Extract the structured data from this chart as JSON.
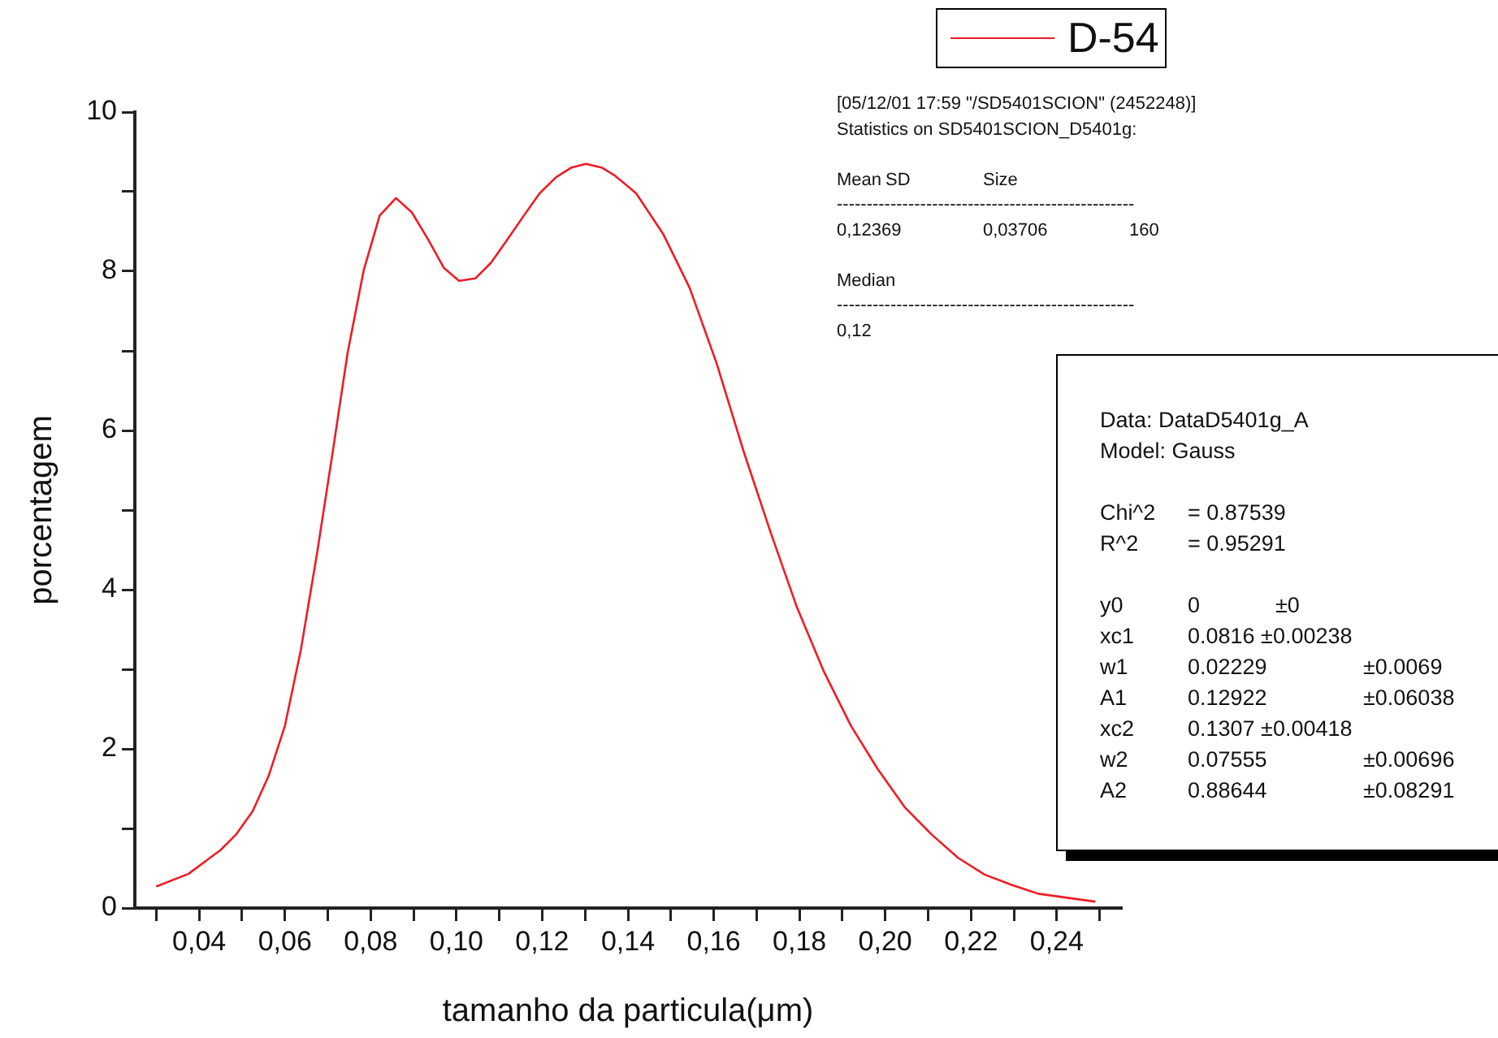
{
  "chart_data": {
    "type": "line",
    "xlabel": "tamanho da particula(μm)",
    "ylabel": "porcentagem",
    "xlim": [
      0.025,
      0.255
    ],
    "xticks": [
      {
        "value": 0.03,
        "label": null
      },
      {
        "value": 0.04,
        "label": "0,04"
      },
      {
        "value": 0.05,
        "label": null
      },
      {
        "value": 0.06,
        "label": "0,06"
      },
      {
        "value": 0.07,
        "label": null
      },
      {
        "value": 0.08,
        "label": "0,08"
      },
      {
        "value": 0.09,
        "label": null
      },
      {
        "value": 0.1,
        "label": "0,10"
      },
      {
        "value": 0.11,
        "label": null
      },
      {
        "value": 0.12,
        "label": "0,12"
      },
      {
        "value": 0.13,
        "label": null
      },
      {
        "value": 0.14,
        "label": "0,14"
      },
      {
        "value": 0.15,
        "label": null
      },
      {
        "value": 0.16,
        "label": "0,16"
      },
      {
        "value": 0.17,
        "label": null
      },
      {
        "value": 0.18,
        "label": "0,18"
      },
      {
        "value": 0.19,
        "label": null
      },
      {
        "value": 0.2,
        "label": "0,20"
      },
      {
        "value": 0.21,
        "label": null
      },
      {
        "value": 0.22,
        "label": "0,22"
      },
      {
        "value": 0.23,
        "label": null
      },
      {
        "value": 0.24,
        "label": "0,24"
      },
      {
        "value": 0.25,
        "label": null
      }
    ],
    "ylim": [
      0,
      10
    ],
    "yticks": [
      0,
      {
        "value": 1,
        "label": null
      },
      2,
      {
        "value": 3,
        "label": null
      },
      4,
      {
        "value": 5,
        "label": null
      },
      6,
      {
        "value": 7,
        "label": null
      },
      8,
      {
        "value": 9,
        "label": null
      },
      10
    ],
    "grid": false,
    "legend": "top right",
    "marker": "none",
    "line_style": "solid",
    "series": [
      {
        "name": "D-54",
        "color": "#ee1c25",
        "x": [
          0.03,
          0.0375,
          0.045,
          0.0487,
          0.0525,
          0.0562,
          0.06,
          0.0637,
          0.0675,
          0.0712,
          0.0746,
          0.0784,
          0.0821,
          0.0859,
          0.0896,
          0.0934,
          0.0971,
          0.1006,
          0.1044,
          0.1081,
          0.1119,
          0.1156,
          0.1194,
          0.1232,
          0.1267,
          0.1302,
          0.134,
          0.137,
          0.1419,
          0.1482,
          0.1544,
          0.1607,
          0.1669,
          0.1732,
          0.1794,
          0.1857,
          0.192,
          0.1982,
          0.2045,
          0.2107,
          0.217,
          0.2232,
          0.2295,
          0.2357,
          0.249
        ],
        "values": [
          0.27,
          0.43,
          0.73,
          0.93,
          1.22,
          1.66,
          2.29,
          3.24,
          4.46,
          5.75,
          6.97,
          8.02,
          8.7,
          8.92,
          8.74,
          8.4,
          8.04,
          7.88,
          7.91,
          8.11,
          8.4,
          8.69,
          8.98,
          9.18,
          9.3,
          9.35,
          9.3,
          9.2,
          8.98,
          8.47,
          7.79,
          6.84,
          5.75,
          4.73,
          3.78,
          2.97,
          2.29,
          1.75,
          1.27,
          0.93,
          0.63,
          0.42,
          0.29,
          0.18,
          0.08
        ]
      }
    ],
    "annotations": [
      "[05/12/01 17:59 \"/SD5401SCION\" (2452248)]\nStatistics on SD5401SCION_D5401g:\n\nMean\tSD\t\tSize\n--------------------------------------------------\n0,12369\t\t0,03706\t\t160\n\nMedian\n--------------------------------------------------\n0,12",
      "Data: DataD5401g_A\nModel: Gauss\n\nChi^2\t= 0.87539\nR^2\t= 0.95291\n\ny0\t0\t±0\nxc1\t0.0816 ±0.00238\nw1\t0.02229\t\t±0.0069\nA1\t0.12922\t\t±0.06038\nxc2\t0.1307 ±0.00418\nw2\t0.07555\t\t±0.00696\nA2\t0.88644\t\t±0.08291"
    ]
  }
}
